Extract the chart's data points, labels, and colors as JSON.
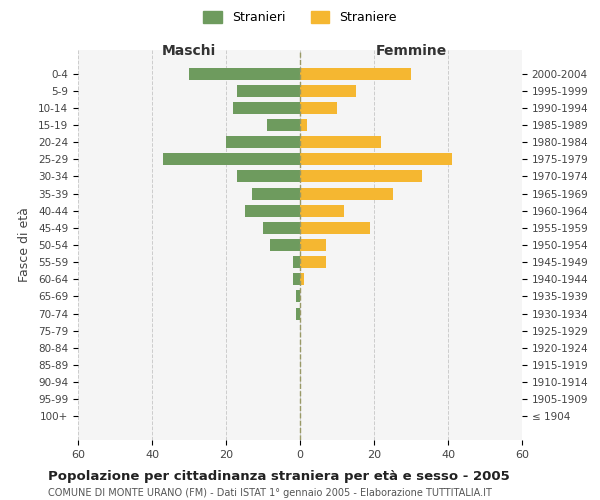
{
  "age_groups": [
    "100+",
    "95-99",
    "90-94",
    "85-89",
    "80-84",
    "75-79",
    "70-74",
    "65-69",
    "60-64",
    "55-59",
    "50-54",
    "45-49",
    "40-44",
    "35-39",
    "30-34",
    "25-29",
    "20-24",
    "15-19",
    "10-14",
    "5-9",
    "0-4"
  ],
  "birth_years": [
    "≤ 1904",
    "1905-1909",
    "1910-1914",
    "1915-1919",
    "1920-1924",
    "1925-1929",
    "1930-1934",
    "1935-1939",
    "1940-1944",
    "1945-1949",
    "1950-1954",
    "1955-1959",
    "1960-1964",
    "1965-1969",
    "1970-1974",
    "1975-1979",
    "1980-1984",
    "1985-1989",
    "1990-1994",
    "1995-1999",
    "2000-2004"
  ],
  "maschi": [
    0,
    0,
    0,
    0,
    0,
    0,
    1,
    1,
    2,
    2,
    8,
    10,
    15,
    13,
    17,
    37,
    20,
    9,
    18,
    17,
    30
  ],
  "femmine": [
    0,
    0,
    0,
    0,
    0,
    0,
    0,
    0,
    1,
    7,
    7,
    19,
    12,
    25,
    33,
    41,
    22,
    2,
    10,
    15,
    30
  ],
  "color_maschi": "#6e9b5e",
  "color_femmine": "#f5b731",
  "color_grid": "#cccccc",
  "color_dashed_line": "#999966",
  "title": "Popolazione per cittadinanza straniera per età e sesso - 2005",
  "subtitle": "COMUNE DI MONTE URANO (FM) - Dati ISTAT 1° gennaio 2005 - Elaborazione TUTTITALIA.IT",
  "label_maschi": "Maschi",
  "label_femmine": "Femmine",
  "legend_stranieri": "Stranieri",
  "legend_straniere": "Straniere",
  "ylabel_left": "Fasce di età",
  "xlim": [
    -60,
    60
  ],
  "xticks": [
    -60,
    -40,
    -20,
    0,
    20,
    40,
    60
  ],
  "xticklabels": [
    "60",
    "40",
    "20",
    "0",
    "20",
    "40",
    "60"
  ],
  "background_color": "#ffffff",
  "plot_bg_color": "#f5f5f5"
}
